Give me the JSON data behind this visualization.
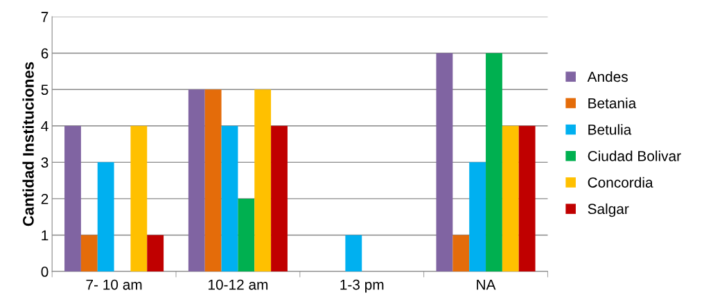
{
  "chart_data": {
    "type": "bar",
    "ylabel": "Cantidad Instituciones",
    "categories": [
      "7- 10 am",
      "10-12 am",
      "1-3 pm",
      "NA"
    ],
    "series": [
      {
        "name": "Andes",
        "color": "#8064a2",
        "values": [
          4,
          5,
          0,
          6
        ]
      },
      {
        "name": "Betania",
        "color": "#e46c0a",
        "values": [
          1,
          5,
          0,
          1
        ]
      },
      {
        "name": "Betulia",
        "color": "#00b0f0",
        "values": [
          3,
          4,
          1,
          3
        ]
      },
      {
        "name": "Ciudad Bolivar",
        "color": "#00b050",
        "values": [
          0,
          2,
          0,
          6
        ]
      },
      {
        "name": "Concordia",
        "color": "#ffc000",
        "values": [
          4,
          5,
          0,
          4
        ]
      },
      {
        "name": "Salgar",
        "color": "#c00000",
        "values": [
          1,
          4,
          0,
          4
        ]
      }
    ],
    "ylim": [
      0,
      7
    ],
    "yticks": [
      0,
      1,
      2,
      3,
      4,
      5,
      6,
      7
    ],
    "grid": "y",
    "legend": "right"
  }
}
